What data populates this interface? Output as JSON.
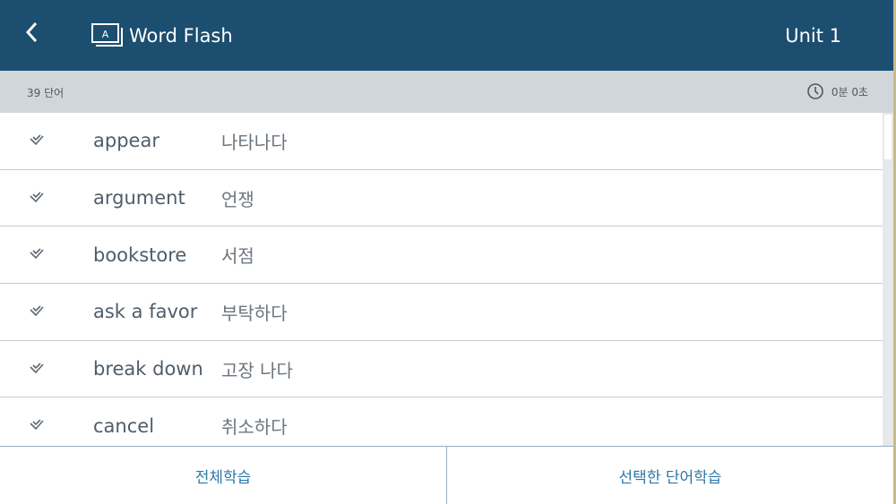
{
  "header": {
    "title": "Word Flash",
    "unit": "Unit 1",
    "logo_letter": "A"
  },
  "subbar": {
    "count": "39 단어",
    "timer": "0분 0초"
  },
  "words": [
    {
      "en": "appear",
      "ko": "나타나다"
    },
    {
      "en": "argument",
      "ko": "언쟁"
    },
    {
      "en": "bookstore",
      "ko": "서점"
    },
    {
      "en": "ask a favor",
      "ko": "부탁하다"
    },
    {
      "en": "break down",
      "ko": "고장 나다"
    },
    {
      "en": "cancel",
      "ko": "취소하다"
    }
  ],
  "footer": {
    "all": "전체학습",
    "selected": "선택한 단어학습"
  },
  "colors": {
    "header": "#1b4e6f",
    "accent": "#2f77a6"
  }
}
